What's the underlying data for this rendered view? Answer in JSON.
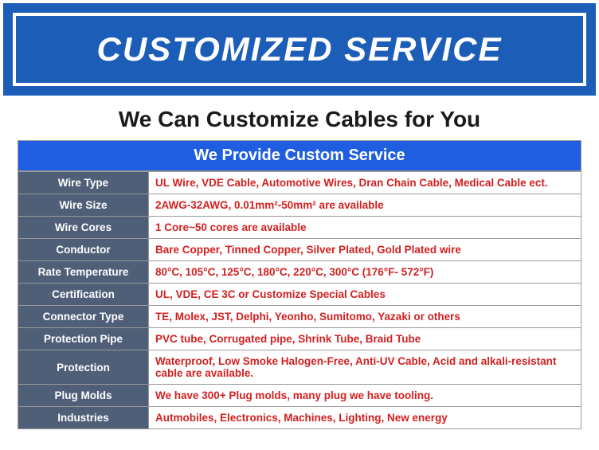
{
  "banner": {
    "title": "CUSTOMIZED SERVICE"
  },
  "subtitle": "We Can Customize Cables for You",
  "table": {
    "header": "We Provide Custom Service",
    "rows": [
      {
        "label": "Wire Type",
        "value": "UL Wire, VDE Cable, Automotive Wires, Dran Chain Cable, Medical Cable ect."
      },
      {
        "label": "Wire Size",
        "value": "2AWG-32AWG, 0.01mm²-50mm² are available"
      },
      {
        "label": "Wire Cores",
        "value": "1 Core~50 cores are available"
      },
      {
        "label": "Conductor",
        "value": "Bare Copper, Tinned Copper, Silver Plated, Gold Plated wire"
      },
      {
        "label": "Rate Temperature",
        "value": "80°C, 105°C, 125°C, 180°C, 220°C, 300°C (176°F- 572°F)"
      },
      {
        "label": "Certification",
        "value": "UL, VDE, CE 3C or Customize Special Cables"
      },
      {
        "label": "Connector Type",
        "value": "TE, Molex, JST, Delphi, Yeonho, Sumitomo, Yazaki or others"
      },
      {
        "label": "Protection Pipe",
        "value": "PVC tube, Corrugated pipe, Shrink Tube, Braid Tube"
      },
      {
        "label": "Protection",
        "value": "Waterproof, Low Smoke Halogen-Free, Anti-UV Cable, Acid and alkali-resistant cable are available."
      },
      {
        "label": "Plug Molds",
        "value": "We have 300+ Plug molds, many plug we have tooling."
      },
      {
        "label": "Industries",
        "value": "Autmobiles, Electronics, Machines, Lighting, New energy"
      }
    ]
  },
  "colors": {
    "banner_bg": "#1c5db8",
    "table_header_bg": "#1f5ee0",
    "label_bg": "#505f78",
    "value_color": "#d32020",
    "border": "#999999"
  }
}
